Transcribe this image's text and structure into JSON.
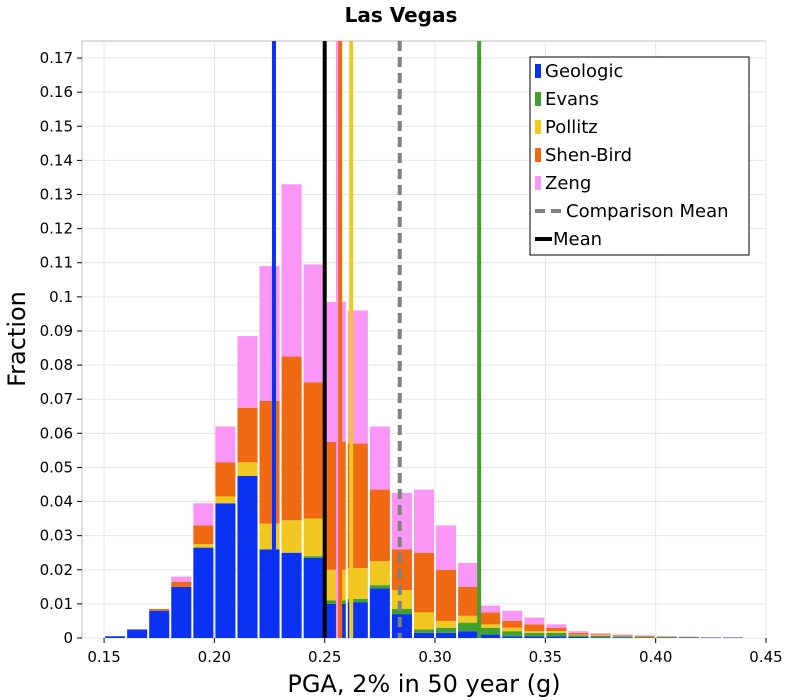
{
  "chart_data": {
    "type": "bar",
    "stacked": true,
    "title": "Las Vegas",
    "xlabel": "PGA, 2% in 50 year (g)",
    "ylabel": "Fraction",
    "xlim": [
      0.14,
      0.45
    ],
    "ylim": [
      0,
      0.175
    ],
    "xticks": [
      "0.15",
      "0.20",
      "0.25",
      "0.30",
      "0.35",
      "0.40",
      "0.45"
    ],
    "yticks": [
      "0",
      "0.01",
      "0.02",
      "0.03",
      "0.04",
      "0.05",
      "0.06",
      "0.07",
      "0.08",
      "0.09",
      "0.1",
      "0.11",
      "0.12",
      "0.13",
      "0.14",
      "0.15",
      "0.16",
      "0.17"
    ],
    "grid": true,
    "legend_position": "top-right",
    "bin_width": 0.01,
    "x": [
      0.155,
      0.165,
      0.175,
      0.185,
      0.195,
      0.205,
      0.215,
      0.225,
      0.235,
      0.245,
      0.255,
      0.265,
      0.275,
      0.285,
      0.295,
      0.305,
      0.315,
      0.325,
      0.335,
      0.345,
      0.355,
      0.365,
      0.375,
      0.385,
      0.395,
      0.405,
      0.415,
      0.425,
      0.435
    ],
    "series": [
      {
        "name": "Geologic",
        "color": "#0a32f0",
        "values": [
          0.0005,
          0.0025,
          0.008,
          0.015,
          0.0265,
          0.0395,
          0.0475,
          0.026,
          0.025,
          0.0235,
          0.01,
          0.0105,
          0.0145,
          0.007,
          0.0015,
          0.0015,
          0.002,
          0.001,
          0.0005,
          0.0005,
          0.0005,
          0.0003,
          0.0002,
          0.0002,
          0.0001,
          0.0001,
          0.0001,
          0.0001,
          0.0001
        ]
      },
      {
        "name": "Evans",
        "color": "#40a030",
        "values": [
          0,
          0,
          0,
          0,
          0,
          0,
          0,
          0,
          0,
          0.0005,
          0.001,
          0.001,
          0.001,
          0.0015,
          0.001,
          0.0015,
          0.0025,
          0.002,
          0.0015,
          0.001,
          0.001,
          0.0005,
          0.0004,
          0.0003,
          0.0002,
          0.0002,
          0.0002,
          0.0001,
          0.0001
        ]
      },
      {
        "name": "Pollitz",
        "color": "#f0c820",
        "values": [
          0,
          0,
          0,
          0,
          0.001,
          0.002,
          0.004,
          0.0075,
          0.0095,
          0.011,
          0.009,
          0.009,
          0.007,
          0.0055,
          0.005,
          0.002,
          0.002,
          0.001,
          0.001,
          0.0005,
          0.0005,
          0.0002,
          0.0002,
          0.0001,
          0.0001,
          0.0001,
          0,
          0,
          0
        ]
      },
      {
        "name": "Shen-Bird",
        "color": "#f06a14",
        "values": [
          0,
          0,
          0.0005,
          0.0015,
          0.0055,
          0.01,
          0.016,
          0.036,
          0.048,
          0.04,
          0.0375,
          0.0365,
          0.021,
          0.012,
          0.0175,
          0.015,
          0.0085,
          0.0035,
          0.002,
          0.002,
          0.001,
          0.0005,
          0.0003,
          0.0002,
          0.0002,
          0.0001,
          0,
          0,
          0
        ]
      },
      {
        "name": "Zeng",
        "color": "#fa96f5",
        "values": [
          0,
          0,
          0,
          0.0015,
          0.0065,
          0.0105,
          0.021,
          0.0395,
          0.0505,
          0.0345,
          0.041,
          0.039,
          0.0185,
          0.0165,
          0.0185,
          0.013,
          0.007,
          0.002,
          0.003,
          0.002,
          0.001,
          0.0005,
          0.0003,
          0.0002,
          0.0002,
          0.0001,
          0.0001,
          0.0001,
          0.0001
        ]
      }
    ],
    "vertical_lines": [
      {
        "name": "Geologic",
        "x": 0.227,
        "color": "#0a32f0",
        "style": "solid"
      },
      {
        "name": "Zeng",
        "x": 0.256,
        "color": "#fa96f5",
        "style": "solid"
      },
      {
        "name": "Shen-Bird",
        "x": 0.257,
        "color": "#f06a14",
        "style": "solid"
      },
      {
        "name": "Pollitz",
        "x": 0.262,
        "color": "#f0c820",
        "style": "solid"
      },
      {
        "name": "Evans",
        "x": 0.32,
        "color": "#40a030",
        "style": "solid"
      },
      {
        "name": "Comparison Mean",
        "x": 0.284,
        "color": "#808080",
        "style": "dashed"
      },
      {
        "name": "Mean",
        "x": 0.25,
        "color": "#000000",
        "style": "solid"
      }
    ],
    "legend": [
      {
        "label": "Geologic",
        "color": "#0a32f0",
        "marker": "bar"
      },
      {
        "label": "Evans",
        "color": "#40a030",
        "marker": "bar"
      },
      {
        "label": "Pollitz",
        "color": "#f0c820",
        "marker": "bar"
      },
      {
        "label": "Shen-Bird",
        "color": "#f06a14",
        "marker": "bar"
      },
      {
        "label": "Zeng",
        "color": "#fa96f5",
        "marker": "bar"
      },
      {
        "label": "Comparison Mean",
        "color": "#808080",
        "marker": "dashed-line"
      },
      {
        "label": "Mean",
        "color": "#000000",
        "marker": "line"
      }
    ]
  }
}
